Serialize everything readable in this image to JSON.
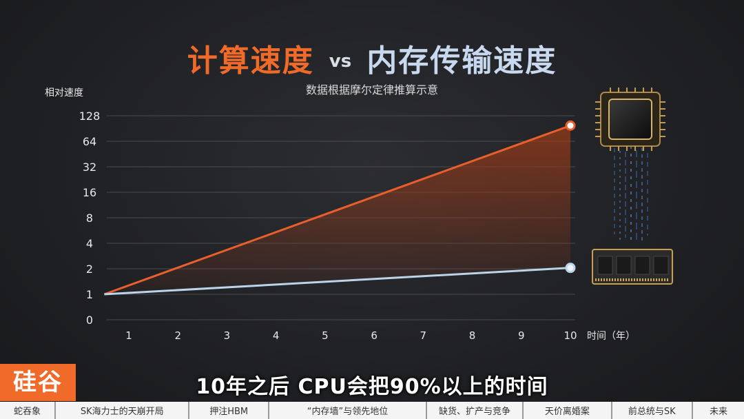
{
  "header": {
    "title_a": "计算速度",
    "title_vs": "vs",
    "title_b": "内存传输速度"
  },
  "chart_data": {
    "type": "line",
    "subtitle": "数据根据摩尔定律推算示意",
    "ylabel": "相对速度",
    "xlabel": "时间（年）",
    "y_scale": "log2",
    "y_ticks": [
      "0",
      "1",
      "2",
      "4",
      "8",
      "16",
      "32",
      "64",
      "128"
    ],
    "x_ticks": [
      "1",
      "2",
      "3",
      "4",
      "5",
      "6",
      "7",
      "8",
      "9",
      "10"
    ],
    "grid": true,
    "series": [
      {
        "color": "#e8602c",
        "points": [
          [
            0.5,
            1
          ],
          [
            10,
            98
          ]
        ]
      },
      {
        "color": "#bcd4ea",
        "points": [
          [
            0.5,
            1
          ],
          [
            10,
            2.05
          ]
        ]
      }
    ]
  },
  "logo": {
    "text": "硅谷"
  },
  "caption": "10年之后 CPU会把90%以上的时间",
  "nav": {
    "items": [
      {
        "label": "蛇吞象",
        "active": false
      },
      {
        "label": "SK海力士的天崩开局",
        "active": false
      },
      {
        "label": "押注HBM",
        "active": false
      },
      {
        "label": "“内存墙”与领先地位",
        "active": false
      },
      {
        "label": "缺货、扩产与竞争",
        "active": false
      },
      {
        "label": "天价离婚案",
        "active": false
      },
      {
        "label": "前总统与SK",
        "active": false
      },
      {
        "label": "未来",
        "active": false
      }
    ]
  }
}
